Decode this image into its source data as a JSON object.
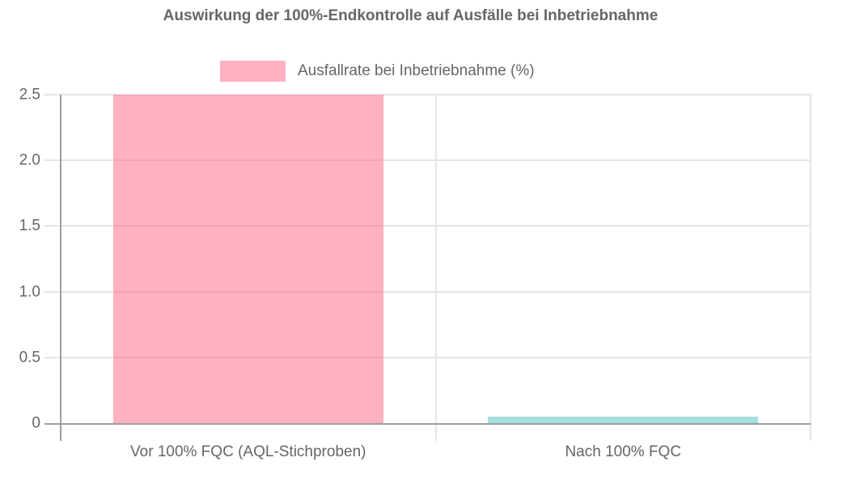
{
  "chart_data": {
    "type": "bar",
    "title": "Auswirkung der 100%-Endkontrolle auf Ausfälle bei Inbetriebnahme",
    "legend": {
      "position": "top",
      "entries": [
        {
          "label": "Ausfallrate bei Inbetriebnahme (%)",
          "color": "#ffb1c1"
        }
      ]
    },
    "categories": [
      "Vor 100% FQC (AQL-Stichproben)",
      "Nach 100% FQC"
    ],
    "series": [
      {
        "name": "Ausfallrate bei Inbetriebnahme (%)",
        "values": [
          2.5,
          0.05
        ]
      }
    ],
    "bar_colors": [
      "rgba(255, 99, 132, 0.5)",
      "rgba(75, 192, 192, 0.5)"
    ],
    "xlabel": "",
    "ylabel": "",
    "ylim": [
      0,
      2.5
    ],
    "ytick_values": [
      0,
      0.5,
      1.0,
      1.5,
      2.0,
      2.5
    ],
    "ytick_labels": [
      "0",
      "0.5",
      "1.0",
      "1.5",
      "2.0",
      "2.5"
    ],
    "grid": true,
    "colors": {
      "grid": "#e5e5e5",
      "axis": "#9e9e9e",
      "text": "#666666",
      "title": "#666666",
      "background": "#ffffff"
    }
  }
}
